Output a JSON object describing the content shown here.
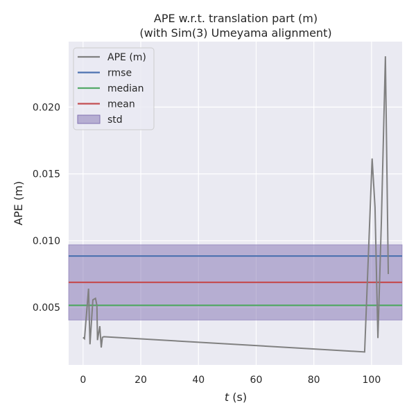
{
  "chart_data": {
    "type": "line",
    "title": [
      "APE w.r.t. translation part (m)",
      "(with Sim(3) Umeyama alignment)"
    ],
    "xlabel": "t (s)",
    "ylabel": "APE (m)",
    "xlim": [
      -5,
      110.6
    ],
    "ylim": [
      0.0007,
      0.0249
    ],
    "xticks": [
      0,
      20,
      40,
      60,
      80,
      100
    ],
    "yticks": [
      0.005,
      0.01,
      0.015,
      0.02
    ],
    "ytick_labels": [
      "0.005",
      "0.010",
      "0.015",
      "0.020"
    ],
    "grid": true,
    "legend_position": "top-left",
    "series": [
      {
        "name": "APE (m)",
        "color": "#808080",
        "x": [
          0,
          0.5,
          1.9,
          2.4,
          3.4,
          4.3,
          4.8,
          5.0,
          5.8,
          6.3,
          6.7,
          7.2,
          97.6,
          100.2,
          101.2,
          102.2,
          103.4,
          104.8,
          105.8
        ],
        "y": [
          0.00276,
          0.00266,
          0.00641,
          0.00224,
          0.00557,
          0.00568,
          0.00516,
          0.00255,
          0.0036,
          0.002,
          0.00276,
          0.00281,
          0.00167,
          0.01615,
          0.0125,
          0.00271,
          0.0114,
          0.0238,
          0.0075
        ]
      }
    ],
    "hlines": [
      {
        "name": "rmse",
        "value": 0.00885,
        "color": "#4c72b0"
      },
      {
        "name": "median",
        "value": 0.00516,
        "color": "#55a868"
      },
      {
        "name": "mean",
        "value": 0.00688,
        "color": "#c44e52"
      }
    ],
    "band": {
      "name": "std",
      "low": 0.00406,
      "high": 0.00969,
      "color": "#8172b2"
    }
  }
}
